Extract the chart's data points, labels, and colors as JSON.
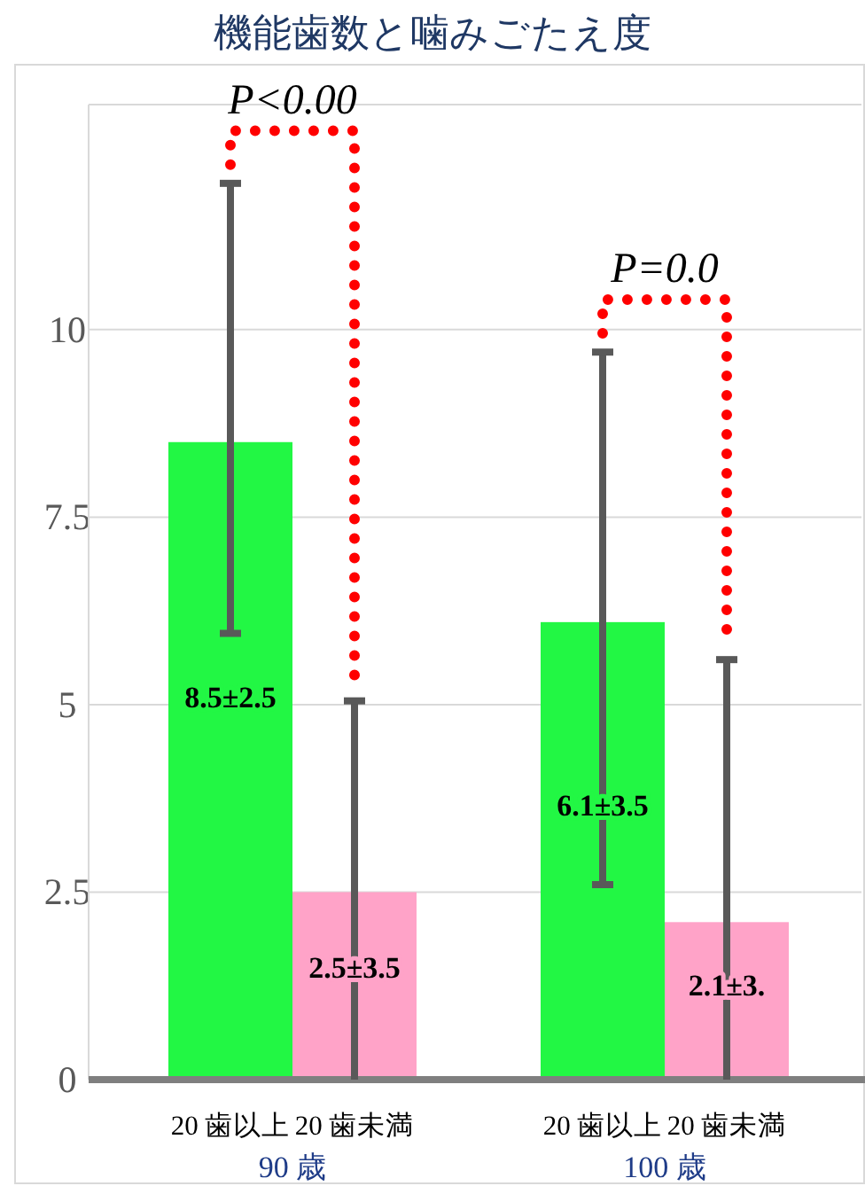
{
  "chart_data": {
    "type": "bar",
    "title": "機能歯数と噛みごたえ度",
    "categories": [
      "20 歯以上",
      "20 歯未満",
      "20 歯以上",
      "20 歯未満"
    ],
    "values": [
      8.5,
      2.5,
      6.1,
      2.1
    ],
    "colors": [
      "#22f744",
      "#ffa3c8",
      "#22f744",
      "#ffa3c8"
    ],
    "errors": [
      [
        5.95,
        11.95
      ],
      [
        0,
        5.05
      ],
      [
        2.6,
        9.7
      ],
      [
        0,
        5.6
      ]
    ],
    "value_labels": [
      "8.5±2.5",
      "2.5±3.5",
      "6.1±3.5",
      "2.1±3."
    ],
    "ylim": [
      0,
      13
    ],
    "yticks": [
      0,
      2.5,
      5,
      7.5,
      10
    ],
    "grid": "y",
    "annotations": [
      "P<0.00",
      "P=0.0",
      "90 歳",
      "100 歳"
    ]
  }
}
